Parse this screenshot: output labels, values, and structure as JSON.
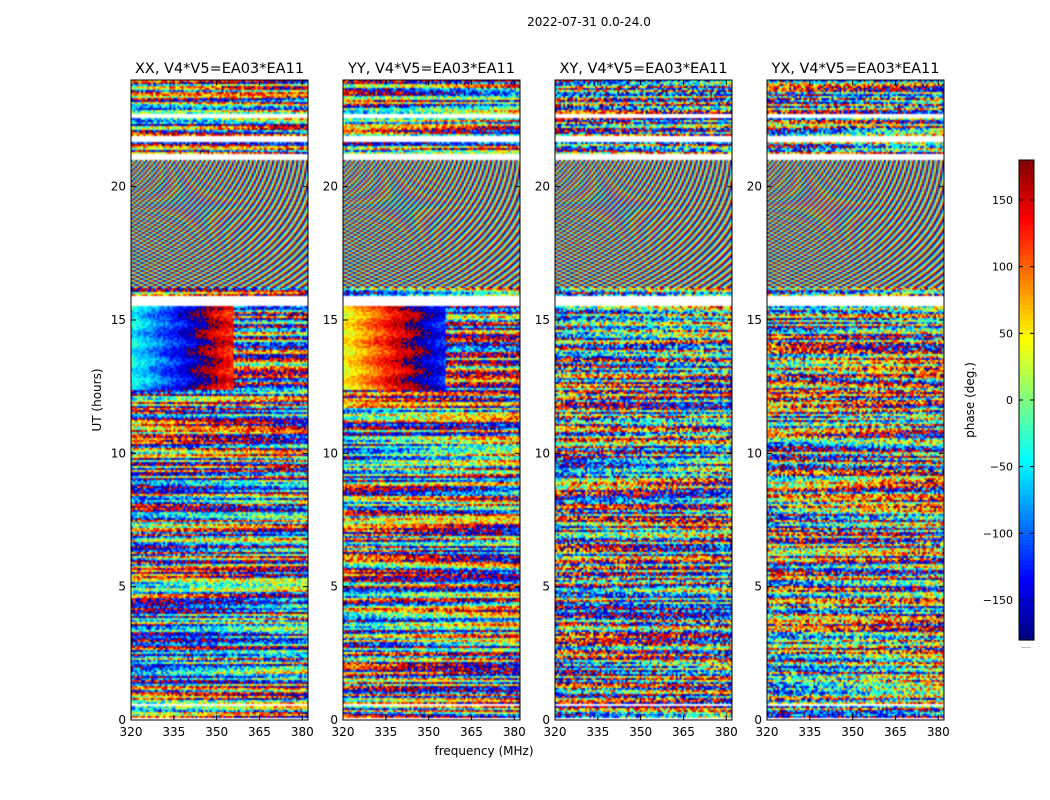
{
  "chart_data": {
    "type": "heatmap",
    "suptitle": "2022-07-31 0.0-24.0",
    "xlabel": "frequency (MHz)",
    "ylabel": "UT (hours)",
    "xlim": [
      320,
      382
    ],
    "ylim": [
      0,
      24
    ],
    "xticks": [
      320,
      335,
      350,
      365,
      380
    ],
    "yticks": [
      0,
      5,
      10,
      15,
      20
    ],
    "panels": [
      {
        "title": "XX, V4*V5=EA03*EA11",
        "pol": "XX"
      },
      {
        "title": "YY, V4*V5=EA03*EA11",
        "pol": "YY"
      },
      {
        "title": "XY, V4*V5=EA03*EA11",
        "pol": "XY"
      },
      {
        "title": "YX, V4*V5=EA03*EA11",
        "pol": "YX"
      }
    ],
    "colorbar": {
      "label": "phase (deg.)",
      "range": [
        -180,
        180
      ],
      "ticks": [
        150,
        100,
        50,
        0,
        -50,
        -100,
        -150
      ],
      "tick_labels": [
        "150",
        "100",
        "50",
        "0",
        "−50",
        "−100",
        "−150"
      ],
      "colormap": "jet",
      "footnote": "....."
    },
    "flagged_hours": [
      [
        0.0,
        0.05
      ],
      [
        0.55,
        0.62
      ],
      [
        15.55,
        15.9
      ],
      [
        21.0,
        21.25
      ],
      [
        21.65,
        21.9
      ],
      [
        22.55,
        22.75
      ]
    ]
  }
}
